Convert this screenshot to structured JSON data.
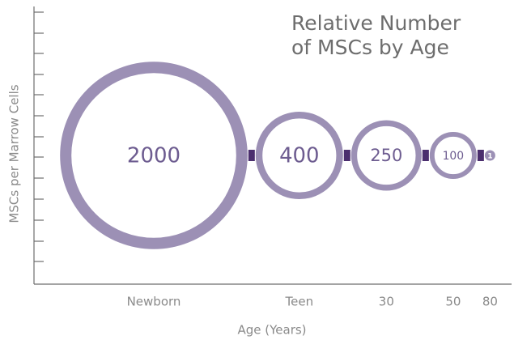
{
  "chart_data": {
    "type": "bubble",
    "title": "Relative Number of MSCs by Age",
    "xlabel": "Age (Years)",
    "ylabel": "MSCs per Marrow Cells",
    "categories": [
      "Newborn",
      "Teen",
      "30",
      "50",
      "80"
    ],
    "values": [
      2000,
      400,
      250,
      100,
      1
    ],
    "color": "#9c90b5",
    "connector_color": "#4b2e6e",
    "text_color": "#6d5c90"
  }
}
